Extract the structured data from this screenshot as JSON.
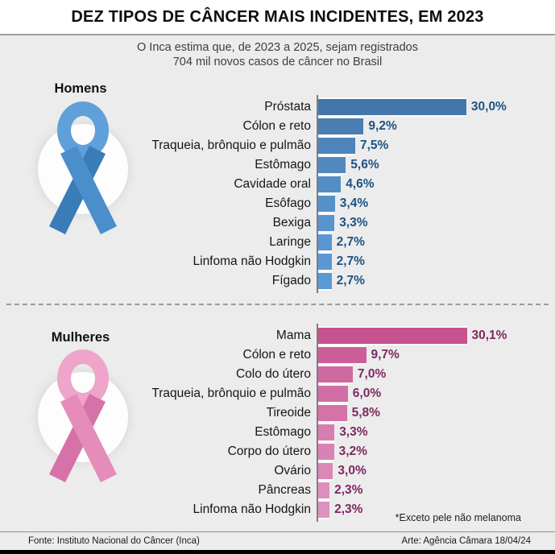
{
  "header": {
    "title": "DEZ TIPOS DE CÂNCER MAIS INCIDENTES, EM 2023",
    "subtitle_line1": "O Inca estima que, de 2023 a 2025, sejam registrados",
    "subtitle_line2": "704 mil novos casos de câncer no Brasil"
  },
  "footnote": "*Exceto pele não melanoma",
  "footer": {
    "source": "Fonte: Instituto Nacional do Câncer (Inca)",
    "credit": "Arte: Agência Câmara 18/04/24"
  },
  "colors": {
    "background": "#ececec",
    "axis": "#7d7d7d",
    "men_value_label": "#1d5384",
    "women_value_label": "#7e2960"
  },
  "chart_data": {
    "type": "bar",
    "orientation": "horizontal",
    "title": "DEZ TIPOS DE CÂNCER MAIS INCIDENTES, EM 2023",
    "unit": "%",
    "x_max": 30.1,
    "grid": false,
    "charts": [
      {
        "group": "Homens",
        "categories": [
          "Próstata",
          "Cólon e reto",
          "Traqueia, brônquio e pulmão",
          "Estômago",
          "Cavidade oral",
          "Esôfago",
          "Bexiga",
          "Laringe",
          "Linfoma não Hodgkin",
          "Fígado"
        ],
        "values": [
          30.0,
          9.2,
          7.5,
          5.6,
          4.6,
          3.4,
          3.3,
          2.7,
          2.7,
          2.7
        ],
        "value_labels": [
          "30,0%",
          "9,2%",
          "7,5%",
          "5,6%",
          "4,6%",
          "3,4%",
          "3,3%",
          "2,7%",
          "2,7%",
          "2,7%"
        ],
        "value_color": "#1d5384",
        "bar_colors": [
          "#4576a9",
          "#4a7db1",
          "#4e84ba",
          "#5189c0",
          "#548dc5",
          "#5791ca",
          "#5994ce",
          "#5a96d1",
          "#5b98d3",
          "#5c9ad5"
        ],
        "ribbon": {
          "loop": "#5fa0da",
          "front": "#4a8fcb",
          "back": "#3a7cb8"
        }
      },
      {
        "group": "Mulheres",
        "categories": [
          "Mama",
          "Cólon e reto",
          "Colo do útero",
          "Traqueia, brônquio e pulmão",
          "Tireoide",
          "Estômago",
          "Corpo do útero",
          "Ovário",
          "Pâncreas",
          "Linfoma não Hodgkin"
        ],
        "values": [
          30.1,
          9.7,
          7.0,
          6.0,
          5.8,
          3.3,
          3.2,
          3.0,
          2.3,
          2.3
        ],
        "value_labels": [
          "30,1%",
          "9,7%",
          "7,0%",
          "6,0%",
          "5,8%",
          "3,3%",
          "3,2%",
          "3,0%",
          "2,3%",
          "2,3%"
        ],
        "value_color": "#7e2960",
        "bar_colors": [
          "#c75290",
          "#cc5f9a",
          "#d068a1",
          "#d26ea6",
          "#d473a9",
          "#d77eb1",
          "#d983b4",
          "#db88b8",
          "#dd8ebc",
          "#de92bf"
        ],
        "ribbon": {
          "loop": "#efa5cb",
          "front": "#e68cba",
          "back": "#d672a8"
        }
      }
    ]
  }
}
